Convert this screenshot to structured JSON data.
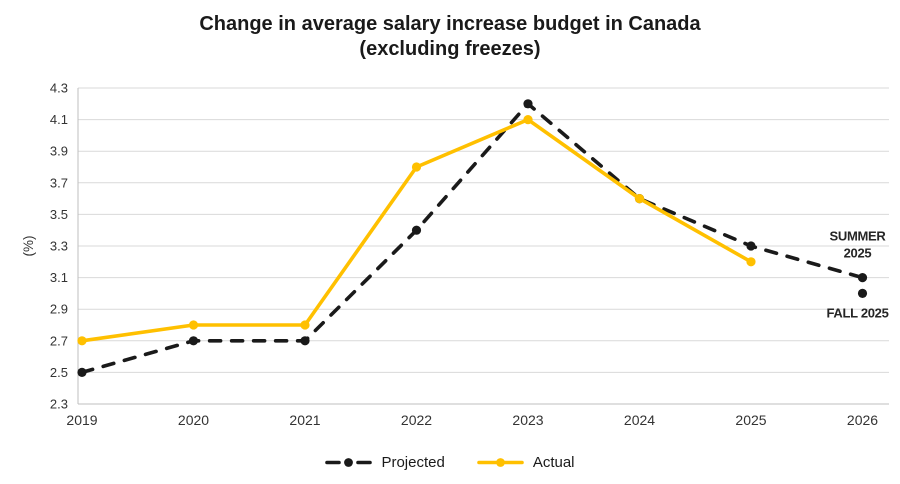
{
  "chart_data": {
    "type": "line",
    "title": "Change in average salary increase budget in Canada",
    "subtitle": "(excluding freezes)",
    "xlabel": "",
    "ylabel": "(%)",
    "ylim": [
      2.3,
      4.3
    ],
    "ytick_step": 0.2,
    "ytick_labels": [
      "2.3",
      "2.5",
      "2.7",
      "2.9",
      "3.1",
      "3.3",
      "3.5",
      "3.7",
      "3.9",
      "4.1",
      "4.3"
    ],
    "grid": true,
    "legend_position": "bottom",
    "categories": [
      "2019",
      "2020",
      "2021",
      "2022",
      "2023",
      "2024",
      "2025",
      "2026"
    ],
    "series": [
      {
        "name": "Projected",
        "color": "#1a1a1a",
        "line_style": "dashed",
        "values": [
          2.5,
          2.7,
          2.7,
          3.4,
          4.2,
          3.6,
          3.3,
          3.1
        ]
      },
      {
        "name": "Actual",
        "color": "#ffc000",
        "line_style": "solid",
        "values": [
          2.7,
          2.8,
          2.8,
          3.8,
          4.1,
          3.6,
          3.2,
          null
        ]
      }
    ],
    "standalone_points": [
      {
        "category": "2026",
        "value": 3.0,
        "color": "#1a1a1a"
      }
    ],
    "annotations": [
      {
        "lines": [
          "SUMMER",
          "2025"
        ],
        "category": "2026",
        "value": 3.1,
        "placement": "above"
      },
      {
        "lines": [
          "FALL 2025"
        ],
        "category": "2026",
        "value": 3.0,
        "placement": "below"
      }
    ]
  }
}
